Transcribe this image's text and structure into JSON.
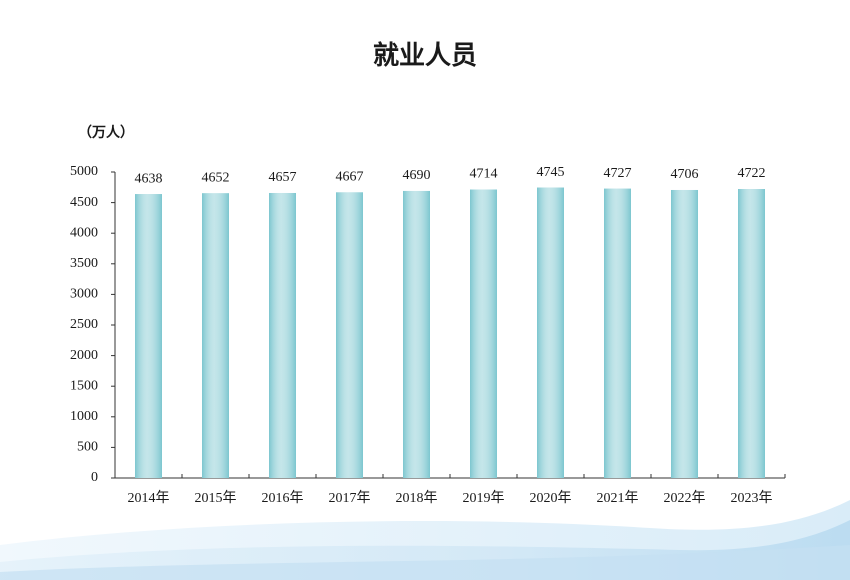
{
  "chart_data": {
    "type": "bar",
    "title": "就业人员",
    "y_label": "（万人）",
    "categories": [
      "2014年",
      "2015年",
      "2016年",
      "2017年",
      "2018年",
      "2019年",
      "2020年",
      "2021年",
      "2022年",
      "2023年"
    ],
    "values": [
      4638,
      4652,
      4657,
      4667,
      4690,
      4714,
      4745,
      4727,
      4706,
      4722
    ],
    "color": "#7cc6cf",
    "ylim": [
      0,
      5000
    ],
    "yticks": [
      0,
      500,
      1000,
      1500,
      2000,
      2500,
      3000,
      3500,
      4000,
      4500,
      5000
    ],
    "grid": false,
    "data_labels": true
  }
}
